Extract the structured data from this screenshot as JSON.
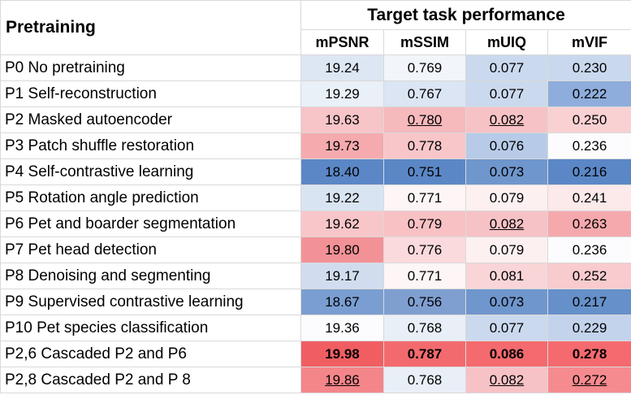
{
  "header": {
    "corner_label": "Pretraining",
    "group_title": "Target task performance",
    "metrics": [
      "mPSNR",
      "mSSIM",
      "mUIQ",
      "mVIF"
    ]
  },
  "rows": [
    {
      "label": "P0 No pretraining",
      "values": [
        "19.24",
        "0.769",
        "0.077",
        "0.230"
      ],
      "colors": [
        "#dde7f3",
        "#f2f5fa",
        "#cbd9ee",
        "#cad8ed"
      ],
      "bold": [
        false,
        false,
        false,
        false
      ],
      "underline": [
        false,
        false,
        false,
        false
      ]
    },
    {
      "label": "P1 Self-reconstruction",
      "values": [
        "19.29",
        "0.767",
        "0.077",
        "0.222"
      ],
      "colors": [
        "#eaf0f8",
        "#dbe5f3",
        "#cbd9ee",
        "#8eaddc"
      ],
      "bold": [
        false,
        false,
        false,
        false
      ],
      "underline": [
        false,
        false,
        false,
        false
      ]
    },
    {
      "label": "P2 Masked autoencoder",
      "values": [
        "19.63",
        "0.780",
        "0.082",
        "0.250"
      ],
      "colors": [
        "#f7c4c7",
        "#f6b9bc",
        "#f7c2c5",
        "#f9d1d3"
      ],
      "bold": [
        false,
        false,
        false,
        false
      ],
      "underline": [
        false,
        true,
        true,
        false
      ]
    },
    {
      "label": "P3 Patch shuffle restoration",
      "values": [
        "19.73",
        "0.778",
        "0.076",
        "0.236"
      ],
      "colors": [
        "#f5aaae",
        "#f8c6c9",
        "#b7cbe8",
        "#fcfcfe"
      ],
      "bold": [
        false,
        false,
        false,
        false
      ],
      "underline": [
        false,
        false,
        false,
        false
      ]
    },
    {
      "label": "P4 Self-contrastive learning",
      "values": [
        "18.40",
        "0.751",
        "0.073",
        "0.216"
      ],
      "colors": [
        "#5b87c6",
        "#5b87c6",
        "#6f96cd",
        "#5b87c6"
      ],
      "bold": [
        false,
        false,
        false,
        false
      ],
      "underline": [
        false,
        false,
        false,
        false
      ]
    },
    {
      "label": "P5 Rotation angle prediction",
      "values": [
        "19.22",
        "0.771",
        "0.079",
        "0.241"
      ],
      "colors": [
        "#d9e4f2",
        "#fdf5f6",
        "#fcf0f1",
        "#fce9ea"
      ],
      "bold": [
        false,
        false,
        false,
        false
      ],
      "underline": [
        false,
        false,
        false,
        false
      ]
    },
    {
      "label": "P6 Pet and boarder segmentation",
      "values": [
        "19.62",
        "0.779",
        "0.082",
        "0.263"
      ],
      "colors": [
        "#f8c6c9",
        "#f8c1c4",
        "#f7c2c5",
        "#f5a9ad"
      ],
      "bold": [
        false,
        false,
        false,
        false
      ],
      "underline": [
        false,
        false,
        true,
        false
      ]
    },
    {
      "label": "P7 Pet head detection",
      "values": [
        "19.80",
        "0.776",
        "0.079",
        "0.236"
      ],
      "colors": [
        "#f29296",
        "#fadadc",
        "#fcf0f1",
        "#fcfcfe"
      ],
      "bold": [
        false,
        false,
        false,
        false
      ],
      "underline": [
        false,
        false,
        false,
        false
      ]
    },
    {
      "label": "P8 Denoising and segmenting",
      "values": [
        "19.17",
        "0.771",
        "0.081",
        "0.252"
      ],
      "colors": [
        "#d1ddef",
        "#fdf5f6",
        "#f9d5d7",
        "#f8cbce"
      ],
      "bold": [
        false,
        false,
        false,
        false
      ],
      "underline": [
        false,
        false,
        false,
        false
      ]
    },
    {
      "label": "P9 Supervised contrastive learning",
      "values": [
        "18.67",
        "0.756",
        "0.073",
        "0.217"
      ],
      "colors": [
        "#7a9ed2",
        "#7f9fd1",
        "#6f96cd",
        "#6690ca"
      ],
      "bold": [
        false,
        false,
        false,
        false
      ],
      "underline": [
        false,
        false,
        false,
        false
      ]
    },
    {
      "label": "P10 Pet species classification",
      "values": [
        "19.36",
        "0.768",
        "0.077",
        "0.229"
      ],
      "colors": [
        "#fcfcfe",
        "#e9eff7",
        "#cbd9ee",
        "#c3d3eb"
      ],
      "bold": [
        false,
        false,
        false,
        false
      ],
      "underline": [
        false,
        false,
        false,
        false
      ]
    },
    {
      "label": "P2,6 Cascaded P2 and P6",
      "values": [
        "19.98",
        "0.787",
        "0.086",
        "0.278"
      ],
      "colors": [
        "#f05e62",
        "#f36a6e",
        "#f46a6e",
        "#f46a6e"
      ],
      "bold": [
        true,
        true,
        true,
        true
      ],
      "underline": [
        false,
        false,
        false,
        false
      ]
    },
    {
      "label": "P2,8 Cascaded P2 and P 8",
      "values": [
        "19.86",
        "0.768",
        "0.082",
        "0.272"
      ],
      "colors": [
        "#f4868a",
        "#e9eff7",
        "#f7c2c5",
        "#f58b8f"
      ],
      "bold": [
        false,
        false,
        false,
        false
      ],
      "underline": [
        true,
        false,
        true,
        true
      ]
    }
  ]
}
